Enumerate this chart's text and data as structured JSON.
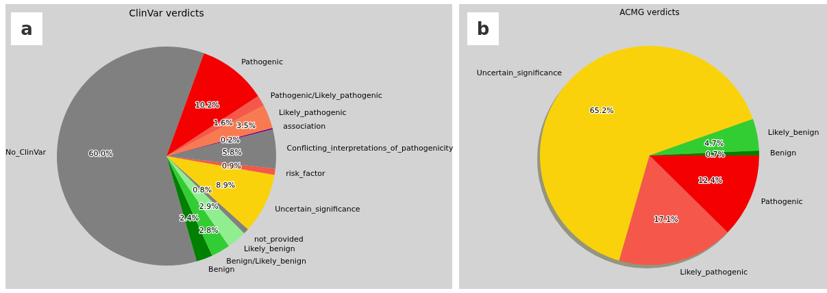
{
  "chart_data": [
    {
      "type": "pie",
      "title": "ClinVar verdicts",
      "annotations": [
        "a"
      ],
      "categories": [
        "No_ClinVar",
        "Benign",
        "Benign/Likely_benign",
        "Likely_benign",
        "not_provided",
        "Uncertain_significance",
        "risk_factor",
        "Conflicting_interpretations_of_pathogenicity",
        "association",
        "Likely_pathogenic",
        "Pathogenic/Likely_pathogenic",
        "Pathogenic"
      ],
      "values": [
        60.0,
        2.4,
        2.8,
        2.9,
        0.8,
        8.9,
        0.9,
        5.8,
        0.2,
        3.5,
        1.6,
        10.2
      ],
      "colors": [
        "#808080",
        "#008000",
        "#32cd32",
        "#90ee90",
        "#808080",
        "#f9d20b",
        "#f5584a",
        "#808080",
        "#800080",
        "#f87a50",
        "#f5584a",
        "#f40000"
      ],
      "value_labels": [
        "60.0%",
        "2.4%",
        "2.8%",
        "2.9%",
        "0.8%",
        "8.9%",
        "0.9%",
        "5.8%",
        "0.2%",
        "3.5%",
        "1.6%",
        "10.2%"
      ]
    },
    {
      "type": "pie",
      "title": "ACMG verdicts",
      "annotations": [
        "b"
      ],
      "categories": [
        "Benign",
        "Likely_benign",
        "Uncertain_significance",
        "Likely_pathogenic",
        "Pathogenic"
      ],
      "values": [
        0.7,
        4.7,
        65.2,
        17.1,
        12.4
      ],
      "colors": [
        "#008000",
        "#32cd32",
        "#f9d20b",
        "#f5584a",
        "#f40000"
      ],
      "value_labels": [
        "0.7%",
        "4.7%",
        "65.2%",
        "17.1%",
        "12.4%"
      ]
    }
  ]
}
